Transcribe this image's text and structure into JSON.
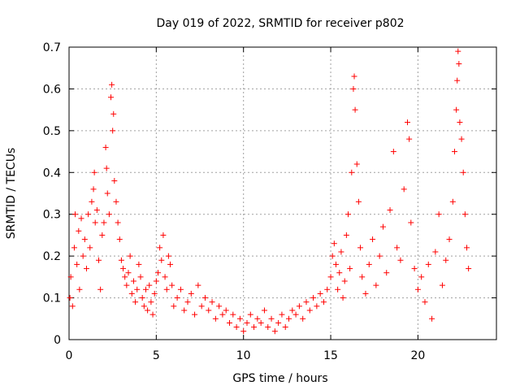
{
  "chart_data": {
    "type": "scatter",
    "title": "Day 019 of 2022, SRMTID for receiver p802",
    "xlabel": "GPS time / hours",
    "ylabel": "SRMTID / TECUs",
    "xlim": [
      0,
      24.5
    ],
    "ylim": [
      0,
      0.7
    ],
    "xticks": [
      {
        "value": 0,
        "label": "0"
      },
      {
        "value": 5,
        "label": "5"
      },
      {
        "value": 10,
        "label": "10"
      },
      {
        "value": 15,
        "label": "15"
      },
      {
        "value": 20,
        "label": "20"
      }
    ],
    "yticks": [
      {
        "value": 0,
        "label": "0"
      },
      {
        "value": 0.1,
        "label": "0.1"
      },
      {
        "value": 0.2,
        "label": "0.2"
      },
      {
        "value": 0.3,
        "label": "0.3"
      },
      {
        "value": 0.4,
        "label": "0.4"
      },
      {
        "value": 0.5,
        "label": "0.5"
      },
      {
        "value": 0.6,
        "label": "0.6"
      },
      {
        "value": 0.7,
        "label": "0.7"
      }
    ],
    "grid": true,
    "marker": "plus",
    "color": "#ff0000",
    "series": [
      {
        "name": "SRMTID",
        "points": [
          [
            0.05,
            0.1
          ],
          [
            0.1,
            0.15
          ],
          [
            0.2,
            0.08
          ],
          [
            0.3,
            0.22
          ],
          [
            0.35,
            0.3
          ],
          [
            0.45,
            0.18
          ],
          [
            0.55,
            0.26
          ],
          [
            0.6,
            0.12
          ],
          [
            0.7,
            0.29
          ],
          [
            0.8,
            0.2
          ],
          [
            0.9,
            0.24
          ],
          [
            1.0,
            0.17
          ],
          [
            1.1,
            0.3
          ],
          [
            1.2,
            0.22
          ],
          [
            1.3,
            0.33
          ],
          [
            1.4,
            0.36
          ],
          [
            1.45,
            0.4
          ],
          [
            1.5,
            0.28
          ],
          [
            1.6,
            0.31
          ],
          [
            1.7,
            0.19
          ],
          [
            1.8,
            0.12
          ],
          [
            1.9,
            0.25
          ],
          [
            2.0,
            0.28
          ],
          [
            2.1,
            0.46
          ],
          [
            2.15,
            0.41
          ],
          [
            2.2,
            0.35
          ],
          [
            2.3,
            0.3
          ],
          [
            2.4,
            0.58
          ],
          [
            2.45,
            0.61
          ],
          [
            2.5,
            0.5
          ],
          [
            2.55,
            0.54
          ],
          [
            2.6,
            0.38
          ],
          [
            2.7,
            0.33
          ],
          [
            2.8,
            0.28
          ],
          [
            2.9,
            0.24
          ],
          [
            3.0,
            0.19
          ],
          [
            3.1,
            0.17
          ],
          [
            3.2,
            0.15
          ],
          [
            3.3,
            0.13
          ],
          [
            3.4,
            0.16
          ],
          [
            3.5,
            0.2
          ],
          [
            3.6,
            0.11
          ],
          [
            3.7,
            0.14
          ],
          [
            3.8,
            0.09
          ],
          [
            3.9,
            0.12
          ],
          [
            4.0,
            0.18
          ],
          [
            4.1,
            0.15
          ],
          [
            4.2,
            0.1
          ],
          [
            4.3,
            0.08
          ],
          [
            4.4,
            0.12
          ],
          [
            4.5,
            0.07
          ],
          [
            4.6,
            0.13
          ],
          [
            4.7,
            0.09
          ],
          [
            4.8,
            0.06
          ],
          [
            4.9,
            0.11
          ],
          [
            5.0,
            0.14
          ],
          [
            5.1,
            0.16
          ],
          [
            5.2,
            0.22
          ],
          [
            5.3,
            0.19
          ],
          [
            5.4,
            0.25
          ],
          [
            5.5,
            0.15
          ],
          [
            5.6,
            0.12
          ],
          [
            5.7,
            0.2
          ],
          [
            5.8,
            0.18
          ],
          [
            5.9,
            0.13
          ],
          [
            6.0,
            0.08
          ],
          [
            6.2,
            0.1
          ],
          [
            6.4,
            0.12
          ],
          [
            6.6,
            0.07
          ],
          [
            6.8,
            0.09
          ],
          [
            7.0,
            0.11
          ],
          [
            7.2,
            0.06
          ],
          [
            7.4,
            0.13
          ],
          [
            7.6,
            0.08
          ],
          [
            7.8,
            0.1
          ],
          [
            8.0,
            0.07
          ],
          [
            8.2,
            0.09
          ],
          [
            8.4,
            0.05
          ],
          [
            8.6,
            0.08
          ],
          [
            8.8,
            0.06
          ],
          [
            9.0,
            0.07
          ],
          [
            9.2,
            0.04
          ],
          [
            9.4,
            0.06
          ],
          [
            9.6,
            0.03
          ],
          [
            9.8,
            0.05
          ],
          [
            10.0,
            0.02
          ],
          [
            10.2,
            0.04
          ],
          [
            10.4,
            0.06
          ],
          [
            10.6,
            0.03
          ],
          [
            10.8,
            0.05
          ],
          [
            11.0,
            0.04
          ],
          [
            11.2,
            0.07
          ],
          [
            11.4,
            0.03
          ],
          [
            11.6,
            0.05
          ],
          [
            11.8,
            0.02
          ],
          [
            12.0,
            0.04
          ],
          [
            12.2,
            0.06
          ],
          [
            12.4,
            0.03
          ],
          [
            12.6,
            0.05
          ],
          [
            12.8,
            0.07
          ],
          [
            13.0,
            0.06
          ],
          [
            13.2,
            0.08
          ],
          [
            13.4,
            0.05
          ],
          [
            13.6,
            0.09
          ],
          [
            13.8,
            0.07
          ],
          [
            14.0,
            0.1
          ],
          [
            14.2,
            0.08
          ],
          [
            14.4,
            0.11
          ],
          [
            14.6,
            0.09
          ],
          [
            14.8,
            0.12
          ],
          [
            15.0,
            0.15
          ],
          [
            15.1,
            0.2
          ],
          [
            15.2,
            0.23
          ],
          [
            15.3,
            0.18
          ],
          [
            15.4,
            0.12
          ],
          [
            15.5,
            0.16
          ],
          [
            15.6,
            0.21
          ],
          [
            15.7,
            0.1
          ],
          [
            15.8,
            0.14
          ],
          [
            15.9,
            0.25
          ],
          [
            16.0,
            0.3
          ],
          [
            16.1,
            0.17
          ],
          [
            16.2,
            0.4
          ],
          [
            16.3,
            0.6
          ],
          [
            16.35,
            0.63
          ],
          [
            16.4,
            0.55
          ],
          [
            16.5,
            0.42
          ],
          [
            16.6,
            0.33
          ],
          [
            16.7,
            0.22
          ],
          [
            16.8,
            0.15
          ],
          [
            17.0,
            0.11
          ],
          [
            17.2,
            0.18
          ],
          [
            17.4,
            0.24
          ],
          [
            17.6,
            0.13
          ],
          [
            17.8,
            0.2
          ],
          [
            18.0,
            0.27
          ],
          [
            18.2,
            0.16
          ],
          [
            18.4,
            0.31
          ],
          [
            18.6,
            0.45
          ],
          [
            18.8,
            0.22
          ],
          [
            19.0,
            0.19
          ],
          [
            19.2,
            0.36
          ],
          [
            19.4,
            0.52
          ],
          [
            19.5,
            0.48
          ],
          [
            19.6,
            0.28
          ],
          [
            19.8,
            0.17
          ],
          [
            20.0,
            0.12
          ],
          [
            20.2,
            0.15
          ],
          [
            20.4,
            0.09
          ],
          [
            20.6,
            0.18
          ],
          [
            20.8,
            0.05
          ],
          [
            21.0,
            0.21
          ],
          [
            21.2,
            0.3
          ],
          [
            21.4,
            0.13
          ],
          [
            21.6,
            0.19
          ],
          [
            21.8,
            0.24
          ],
          [
            22.0,
            0.33
          ],
          [
            22.1,
            0.45
          ],
          [
            22.2,
            0.55
          ],
          [
            22.25,
            0.62
          ],
          [
            22.3,
            0.69
          ],
          [
            22.35,
            0.66
          ],
          [
            22.4,
            0.52
          ],
          [
            22.5,
            0.48
          ],
          [
            22.6,
            0.4
          ],
          [
            22.7,
            0.3
          ],
          [
            22.8,
            0.22
          ],
          [
            22.9,
            0.17
          ]
        ]
      }
    ]
  }
}
